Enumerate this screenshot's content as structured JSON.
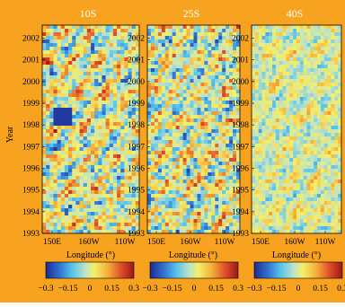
{
  "colors": {
    "background": "#f7a31f",
    "colormap": [
      "#1d2a8f",
      "#2f6fd0",
      "#57c3ea",
      "#bfe3c8",
      "#f4ef6a",
      "#f5b23a",
      "#e2512a",
      "#9b1714"
    ]
  },
  "chart_data": {
    "type": "heatmap",
    "ylabel": "Year",
    "xlabel": "Longitude (°)",
    "y_ticks": [
      "2002",
      "2001",
      "2000",
      "1999",
      "1998",
      "1997",
      "1996",
      "1995",
      "1994",
      "1993"
    ],
    "x_ticks": [
      "150E",
      "160W",
      "110W"
    ],
    "colorbar_ticks": [
      "−0.3",
      "−0.15",
      "0",
      "0.15",
      "0.3"
    ],
    "colorbar_range": [
      -0.3,
      0.3
    ],
    "ylim": [
      1993,
      2002.6
    ],
    "panels": [
      {
        "title": "10S",
        "xlabel": "Longitude (°)"
      },
      {
        "title": "25S",
        "xlabel": "Longitude (°)"
      },
      {
        "title": "40S",
        "xlabel": "Longitude (°)"
      }
    ]
  }
}
